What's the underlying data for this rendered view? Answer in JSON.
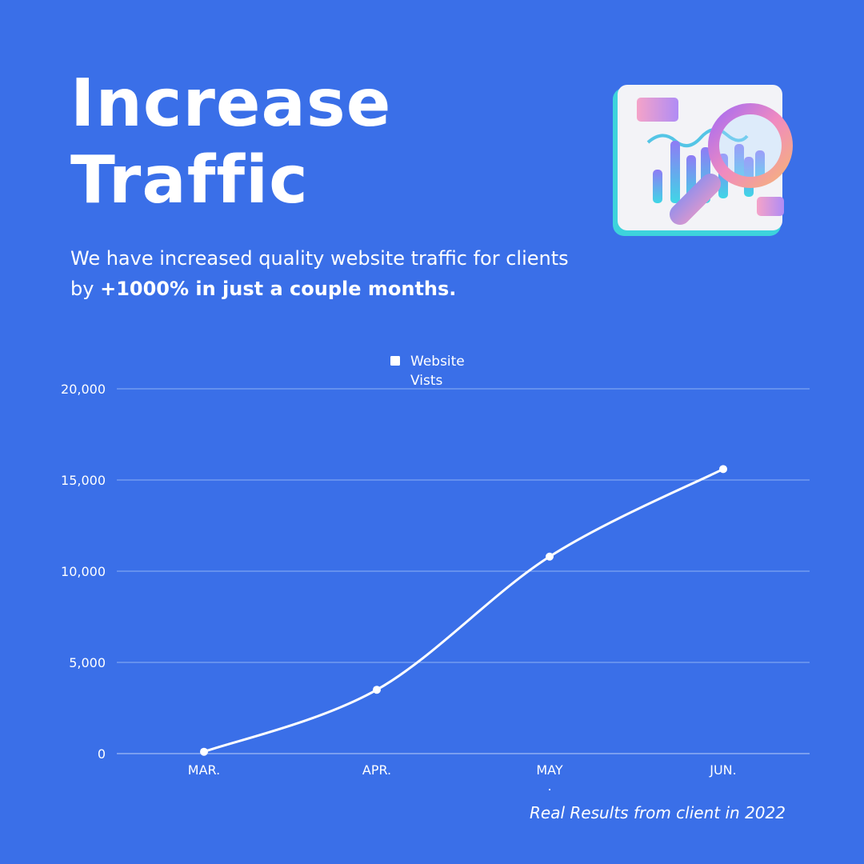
{
  "headline": {
    "line1": "Increase",
    "line2": "Traffic"
  },
  "subtitle": {
    "text": "We have increased quality website traffic for clients by ",
    "emphasis": "+1000% in just a couple months."
  },
  "caption": "Real Results from client in 2022",
  "colors": {
    "background": "#3a6fe8",
    "line": "#ffffff",
    "grid": "#8fb0f5"
  },
  "illustration_icon": "chart-magnifier-icon",
  "chart_data": {
    "type": "line",
    "categories": [
      "MAR.",
      "APR.",
      "MAY",
      "JUN."
    ],
    "series": [
      {
        "name": "Website Vists",
        "values": [
          100,
          3500,
          10800,
          15600
        ]
      }
    ],
    "ylim": [
      0,
      20000
    ],
    "yticks": [
      0,
      5000,
      10000,
      15000,
      20000
    ],
    "ytick_labels": [
      "0",
      "5,000",
      "10,000",
      "15,000",
      "20,000"
    ],
    "grid": true,
    "legend": "top-center",
    "annotation": "."
  }
}
